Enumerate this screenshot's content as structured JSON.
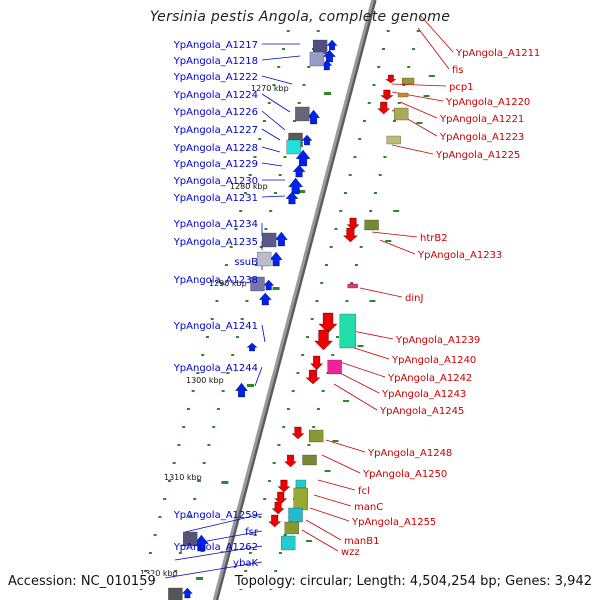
{
  "title": "Yersinia pestis Angola, complete genome",
  "footer": {
    "accession": "Accession: NC_010159",
    "topology": "Topology: circular; Length: 4,504,254 bp; Genes: 3,942"
  },
  "colors": {
    "backbone": "#9a9a9a",
    "tick": "#2a8a2a",
    "label_left": "#0000cc",
    "label_right": "#cc0000",
    "arrow_left": "#0022ee",
    "arrow_right": "#ee0000"
  },
  "scale_ticks": [
    "1270 kbp",
    "1280 kbp",
    "1290 kbp",
    "1300 kbp",
    "1310 kbp",
    "1320 kbp"
  ],
  "left_genes": [
    "YpAngola_A1217",
    "YpAngola_A1218",
    "YpAngola_A1222",
    "YpAngola_A1224",
    "YpAngola_A1226",
    "YpAngola_A1227",
    "YpAngola_A1228",
    "YpAngola_A1229",
    "YpAngola_A1230",
    "YpAngola_A1231",
    "YpAngola_A1234",
    "YpAngola_A1235",
    "ssuB",
    "YpAngola_A1238",
    "YpAngola_A1241",
    "YpAngola_A1244",
    "YpAngola_A1259",
    "fsr",
    "YpAngola_A1262",
    "ybaK"
  ],
  "right_genes": [
    "YpAngola_A1211",
    "fis",
    "pcp1",
    "YpAngola_A1220",
    "YpAngola_A1221",
    "YpAngola_A1223",
    "YpAngola_A1225",
    "htrB2",
    "YpAngola_A1233",
    "dinJ",
    "YpAngola_A1239",
    "YpAngola_A1240",
    "YpAngola_A1242",
    "YpAngola_A1243",
    "YpAngola_A1245",
    "YpAngola_A1248",
    "YpAngola_A1250",
    "fcl",
    "manC",
    "YpAngola_A1255",
    "manB1",
    "wzz"
  ]
}
